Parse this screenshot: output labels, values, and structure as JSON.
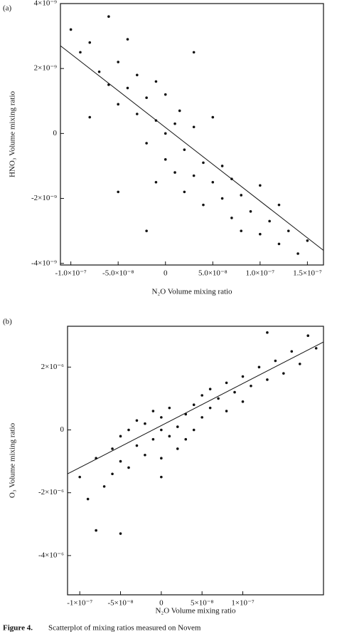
{
  "chart_data": [
    {
      "type": "scatter",
      "panel_label": "(a)",
      "xlabel": "N₂O Volume mixing ratio",
      "ylabel": "HNO₃ Volume mixing ratio",
      "xlim": [
        -1.11e-07,
        1.67e-07
      ],
      "ylim": [
        -4.05e-09,
        4e-09
      ],
      "xticks": [
        {
          "value": -1e-07,
          "label": "-1.0×10⁻⁷"
        },
        {
          "value": -5e-08,
          "label": "-5.0×10⁻⁸"
        },
        0,
        {
          "value": 5e-08,
          "label": "5.0×10⁻⁸"
        },
        {
          "value": 1e-07,
          "label": "1.0×10⁻⁷"
        },
        {
          "value": 1.5e-07,
          "label": "1.5×10⁻⁷"
        }
      ],
      "yticks": [
        {
          "value": 4e-09,
          "label": "4×10⁻⁹"
        },
        {
          "value": 2e-09,
          "label": "2×10⁻⁹"
        },
        0,
        {
          "value": -2e-09,
          "label": "-2×10⁻⁹"
        },
        {
          "value": -4e-09,
          "label": "-4×10⁻⁹"
        }
      ],
      "series": [
        {
          "type": "scatter",
          "color": "#111111",
          "x": [
            -1e-07,
            -9e-08,
            -8e-08,
            -7e-08,
            -6e-08,
            -6e-08,
            -5e-08,
            -5e-08,
            -4e-08,
            -4e-08,
            -3e-08,
            -3e-08,
            -2e-08,
            -2e-08,
            -1e-08,
            -1e-08,
            0,
            0,
            0,
            1e-08,
            1e-08,
            1.5e-08,
            2e-08,
            2e-08,
            3e-08,
            3e-08,
            4e-08,
            4e-08,
            5e-08,
            5e-08,
            6e-08,
            6e-08,
            7e-08,
            7e-08,
            8e-08,
            8e-08,
            9e-08,
            1e-07,
            1e-07,
            1.1e-07,
            1.2e-07,
            1.2e-07,
            1.3e-07,
            1.4e-07,
            1.5e-07,
            -1e-08,
            -5e-08,
            -2e-08,
            3e-08,
            -8e-08
          ],
          "values": [
            3.2e-09,
            2.5e-09,
            2.8e-09,
            1.9e-09,
            3.6e-09,
            1.5e-09,
            2.2e-09,
            9e-10,
            1.4e-09,
            2.9e-09,
            6e-10,
            1.8e-09,
            1.1e-09,
            -3e-10,
            4e-10,
            1.6e-09,
            0,
            -8e-10,
            1.2e-09,
            3e-10,
            -1.2e-09,
            7e-10,
            -5e-10,
            -1.8e-09,
            2e-10,
            -1.3e-09,
            -9e-10,
            -2.2e-09,
            -1.5e-09,
            5e-10,
            -2e-09,
            -1e-09,
            -2.6e-09,
            -1.4e-09,
            -1.9e-09,
            -3e-09,
            -2.4e-09,
            -1.6e-09,
            -3.1e-09,
            -2.7e-09,
            -3.4e-09,
            -2.2e-09,
            -3e-09,
            -3.7e-09,
            -3.3e-09,
            -1.5e-09,
            -1.8e-09,
            -3e-09,
            2.5e-09,
            5e-10
          ]
        },
        {
          "type": "line",
          "color": "#111111",
          "x": [
            -1.11e-07,
            1.67e-07
          ],
          "values": [
            2.7e-09,
            -3.6e-09
          ]
        }
      ]
    },
    {
      "type": "scatter",
      "panel_label": "(b)",
      "xlabel": "N₂O Volume mixing ratio",
      "ylabel": "O₃ Volume mixing ratio",
      "xlim": [
        -1.15e-07,
        1.99e-07
      ],
      "ylim": [
        -5.25e-06,
        3.3e-06
      ],
      "xticks": [
        {
          "value": -1e-07,
          "label": "-1×10⁻⁷"
        },
        {
          "value": -5e-08,
          "label": "-5×10⁻⁸"
        },
        0,
        {
          "value": 5e-08,
          "label": "5×10⁻⁸"
        },
        {
          "value": 1e-07,
          "label": "1×10⁻⁷"
        }
      ],
      "yticks": [
        {
          "value": 2e-06,
          "label": "2×10⁻⁶"
        },
        0,
        {
          "value": -2e-06,
          "label": "-2×10⁻⁶"
        },
        {
          "value": -4e-06,
          "label": "-4×10⁻⁶"
        }
      ],
      "series": [
        {
          "type": "scatter",
          "color": "#111111",
          "x": [
            -1e-07,
            -9e-08,
            -8e-08,
            -7e-08,
            -6e-08,
            -6e-08,
            -5e-08,
            -5e-08,
            -4e-08,
            -4e-08,
            -3e-08,
            -3e-08,
            -2e-08,
            -2e-08,
            -1e-08,
            -1e-08,
            0,
            0,
            0,
            1e-08,
            1e-08,
            2e-08,
            2e-08,
            3e-08,
            3e-08,
            4e-08,
            4e-08,
            5e-08,
            5e-08,
            6e-08,
            6e-08,
            7e-08,
            8e-08,
            8e-08,
            9e-08,
            1e-07,
            1e-07,
            1.1e-07,
            1.2e-07,
            1.3e-07,
            1.4e-07,
            1.5e-07,
            1.6e-07,
            1.7e-07,
            1.8e-07,
            1.9e-07,
            -8e-08,
            -5e-08,
            1.3e-07,
            0
          ],
          "values": [
            -1.5e-06,
            -2.2e-06,
            -9e-07,
            -1.8e-06,
            -6e-07,
            -1.4e-06,
            -2e-07,
            -1e-06,
            -1.2e-06,
            0,
            -5e-07,
            3e-07,
            -8e-07,
            2e-07,
            -3e-07,
            6e-07,
            0,
            -9e-07,
            4e-07,
            -2e-07,
            7e-07,
            1e-07,
            -6e-07,
            5e-07,
            -3e-07,
            8e-07,
            0,
            4e-07,
            1.1e-06,
            7e-07,
            1.3e-06,
            1e-06,
            1.5e-06,
            6e-07,
            1.2e-06,
            1.7e-06,
            9e-07,
            1.4e-06,
            2e-06,
            1.6e-06,
            2.2e-06,
            1.8e-06,
            2.5e-06,
            2.1e-06,
            3e-06,
            2.6e-06,
            -3.2e-06,
            -3.3e-06,
            3.1e-06,
            -1.5e-06
          ]
        },
        {
          "type": "line",
          "color": "#111111",
          "x": [
            -1.15e-07,
            1.99e-07
          ],
          "values": [
            -1.4e-06,
            2.8e-06
          ]
        }
      ]
    }
  ],
  "caption": {
    "label": "Figure 4.",
    "text": "Scatterplot of mixing ratios measured on Novem"
  }
}
